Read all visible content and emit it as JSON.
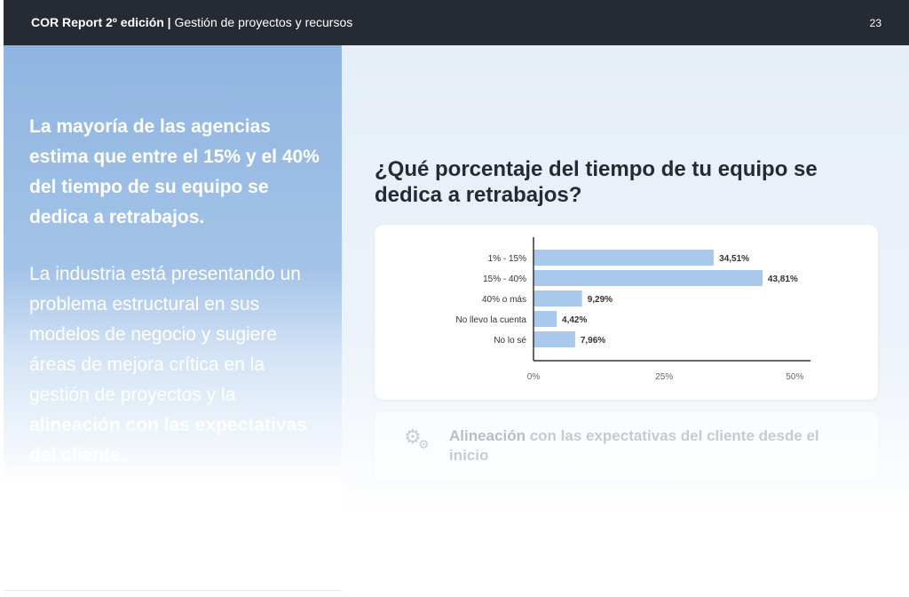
{
  "header": {
    "report_title": "COR Report 2º edición |",
    "report_subtitle": "Gestión de proyectos y recursos",
    "page_number": "23"
  },
  "left": {
    "headline": "La mayoría de las agencias estima que entre el 15% y el 40% del tiempo de su equipo se dedica a retrabajos.",
    "body_text": "La industria está presentando un problema estructural en sus modelos de negocio y sugiere áreas de mejora crítica en la gestión de proyectos y la",
    "body_bold": "alineación con las expectativas del cliente."
  },
  "right": {
    "question": "¿Qué porcentaje del tiempo de tu equipo se dedica a retrabajos?",
    "insight_bold": "Alineación",
    "insight_text": " con las expectativas del cliente desde el inicio",
    "insight_icon": "gears-icon"
  },
  "colors": {
    "header_bg": "#262b33",
    "bar": "#a9c9ec",
    "left_panel": "#8fb5e1"
  },
  "chart_data": {
    "type": "bar",
    "orientation": "horizontal",
    "categories": [
      "1% - 15%",
      "15% - 40%",
      "40% o más",
      "No llevo la cuenta",
      "No lo sé"
    ],
    "values": [
      34.51,
      43.81,
      9.29,
      4.42,
      7.96
    ],
    "value_labels": [
      "34,51%",
      "43,81%",
      "9,29%",
      "4,42%",
      "7,96%"
    ],
    "xlim": [
      0,
      53
    ],
    "xticks": [
      0,
      25,
      50
    ],
    "xtick_labels": [
      "0%",
      "25%",
      "50%"
    ],
    "grid": false
  }
}
